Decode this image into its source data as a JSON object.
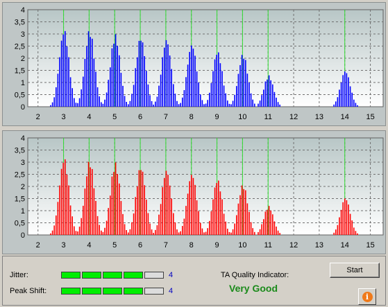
{
  "charts": [
    {
      "id": "top",
      "bar_color": "#0000ff",
      "y_ticks": [
        "0",
        "0,5",
        "1",
        "1,5",
        "2",
        "2,5",
        "3",
        "3,5",
        "4"
      ],
      "x_ticks": [
        "2",
        "3",
        "4",
        "5",
        "6",
        "7",
        "8",
        "9",
        "10",
        "11",
        "12",
        "13",
        "14",
        "15"
      ],
      "chart_data": {
        "type": "bar",
        "x_range": [
          1.6,
          15.5
        ],
        "y_range": [
          0,
          4
        ],
        "peaks": [
          {
            "x": 3,
            "height": 3.2
          },
          {
            "x": 4,
            "height": 3.2
          },
          {
            "x": 5,
            "height": 3.0
          },
          {
            "x": 6,
            "height": 2.9
          },
          {
            "x": 7,
            "height": 2.8
          },
          {
            "x": 8,
            "height": 2.6
          },
          {
            "x": 9,
            "height": 2.3
          },
          {
            "x": 10,
            "height": 2.2
          },
          {
            "x": 11,
            "height": 1.3
          },
          {
            "x": 14,
            "height": 1.5
          }
        ]
      }
    },
    {
      "id": "bottom",
      "bar_color": "#ff0000",
      "y_ticks": [
        "0",
        "0,5",
        "1",
        "1,5",
        "2",
        "2,5",
        "3",
        "3,5",
        "4"
      ],
      "x_ticks": [
        "2",
        "3",
        "4",
        "5",
        "6",
        "7",
        "8",
        "9",
        "10",
        "11",
        "12",
        "13",
        "14",
        "15"
      ],
      "chart_data": {
        "type": "bar",
        "x_range": [
          1.6,
          15.5
        ],
        "y_range": [
          0,
          4
        ],
        "peaks": [
          {
            "x": 3,
            "height": 3.2
          },
          {
            "x": 4,
            "height": 3.1
          },
          {
            "x": 5,
            "height": 3.0
          },
          {
            "x": 6,
            "height": 2.85
          },
          {
            "x": 7,
            "height": 2.7
          },
          {
            "x": 8,
            "height": 2.55
          },
          {
            "x": 9,
            "height": 2.3
          },
          {
            "x": 10,
            "height": 2.1
          },
          {
            "x": 11,
            "height": 1.2
          },
          {
            "x": 14,
            "height": 1.55
          }
        ]
      }
    }
  ],
  "status": {
    "jitter_label": "Jitter:",
    "jitter_value": "4",
    "jitter_level": 4,
    "jitter_max": 5,
    "peak_shift_label": "Peak Shift:",
    "peak_shift_value": "4",
    "peak_shift_level": 4,
    "peak_shift_max": 5,
    "quality_label": "TA Quality Indicator:",
    "quality_value": "Very Good",
    "quality_color": "#1a8a1a"
  },
  "buttons": {
    "start_label": "Start",
    "info_glyph": "i",
    "info_icon": "info-icon"
  }
}
